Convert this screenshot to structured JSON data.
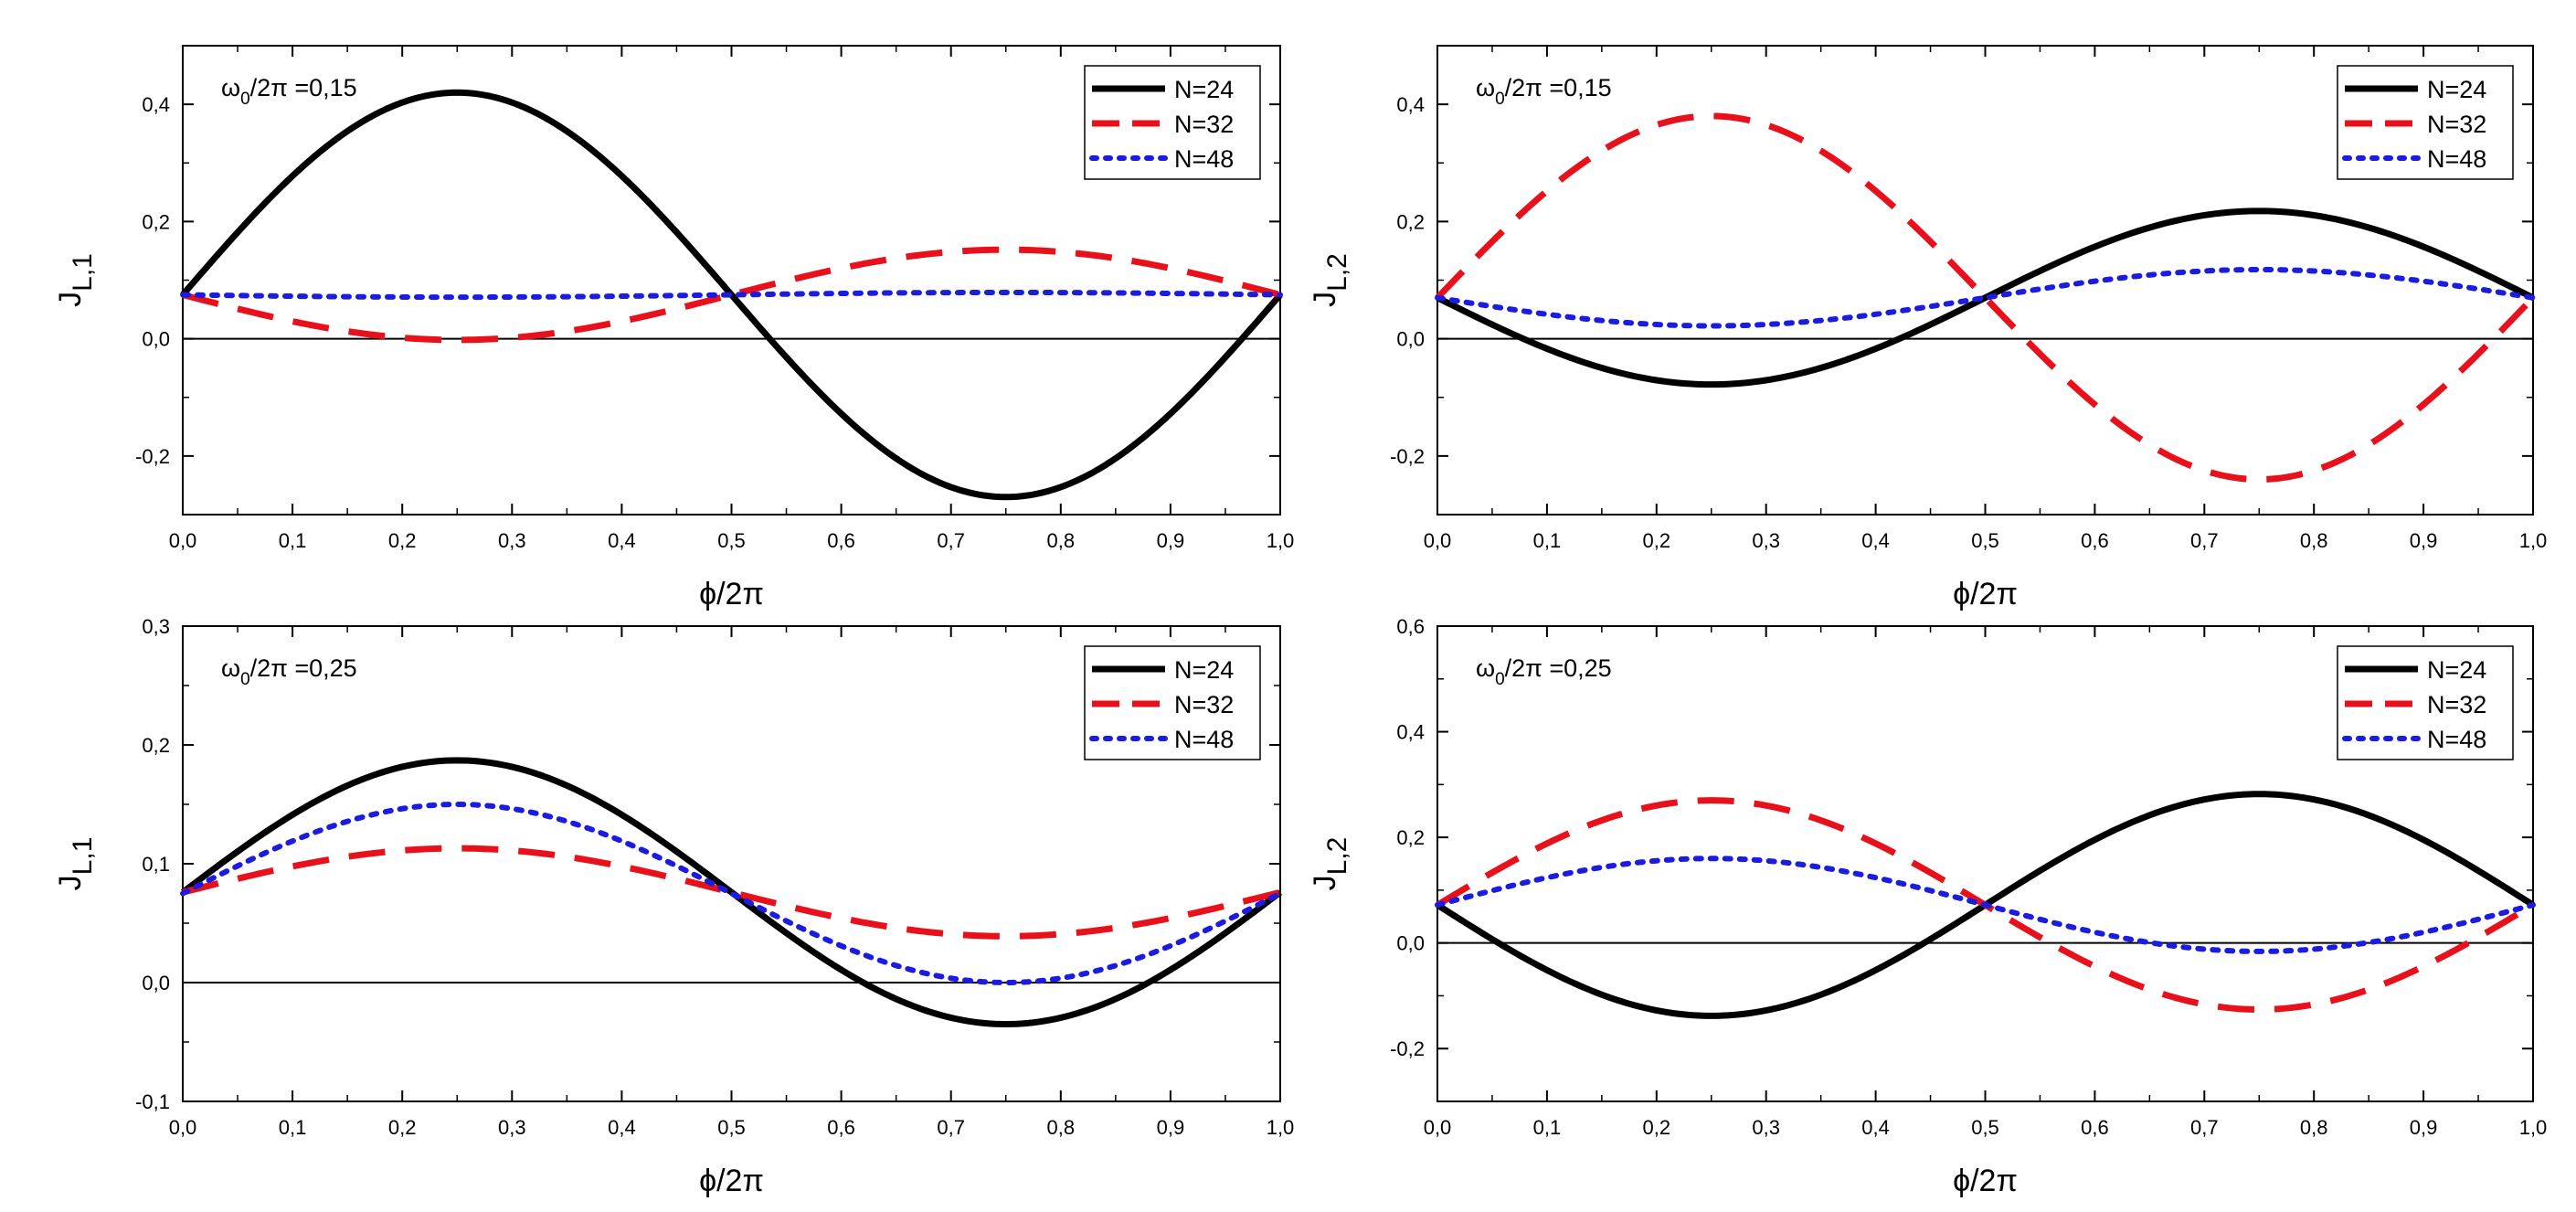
{
  "colors": {
    "N24": "#000000",
    "N32": "#e8101a",
    "N48": "#1c1ce0",
    "axis": "#000000"
  },
  "chart_data": [
    {
      "type": "line",
      "annotation": {
        "prefix": "ω",
        "sub": "0",
        "suffix": "/2π =0,15"
      },
      "xlabel": "ϕ/2π",
      "ylabel": {
        "main": "J",
        "sub": "L,1"
      },
      "xlim": [
        0,
        1
      ],
      "ylim": [
        -0.3,
        0.5
      ],
      "xticks": [
        0,
        0.1,
        0.2,
        0.3,
        0.4,
        0.5,
        0.6,
        0.7,
        0.8,
        0.9,
        1.0
      ],
      "xtick_labels": [
        "0,0",
        "0,1",
        "0,2",
        "0,3",
        "0,4",
        "0,5",
        "0,6",
        "0,7",
        "0,8",
        "0,9",
        "1,0"
      ],
      "yticks": [
        -0.2,
        0,
        0.2,
        0.4
      ],
      "ytick_labels": [
        "-0,2",
        "0,0",
        "0,2",
        "0,4"
      ],
      "zero_line": true,
      "series": [
        {
          "name": "N=24",
          "style": "solid",
          "color": "#000000",
          "offset": 0.075,
          "amplitude": 0.345,
          "phase": "sin"
        },
        {
          "name": "N=32",
          "style": "dash",
          "color": "#e8101a",
          "offset": 0.075,
          "amplitude": -0.077,
          "phase": "sin"
        },
        {
          "name": "N=48",
          "style": "dot",
          "color": "#1c1ce0",
          "offset": 0.075,
          "amplitude": -0.004,
          "phase": "sin"
        }
      ]
    },
    {
      "type": "line",
      "annotation": {
        "prefix": "ω",
        "sub": "0",
        "suffix": "/2π =0,15"
      },
      "xlabel": "ϕ/2π",
      "ylabel": {
        "main": "J",
        "sub": "L,2"
      },
      "xlim": [
        0,
        1
      ],
      "ylim": [
        -0.3,
        0.5
      ],
      "xticks": [
        0,
        0.1,
        0.2,
        0.3,
        0.4,
        0.5,
        0.6,
        0.7,
        0.8,
        0.9,
        1.0
      ],
      "xtick_labels": [
        "0,0",
        "0,1",
        "0,2",
        "0,3",
        "0,4",
        "0,5",
        "0,6",
        "0,7",
        "0,8",
        "0,9",
        "1,0"
      ],
      "yticks": [
        -0.2,
        0,
        0.2,
        0.4
      ],
      "ytick_labels": [
        "-0,2",
        "0,0",
        "0,2",
        "0,4"
      ],
      "zero_line": true,
      "series": [
        {
          "name": "N=24",
          "style": "solid",
          "color": "#000000",
          "offset": 0.07,
          "amplitude": -0.148,
          "phase": "sin"
        },
        {
          "name": "N=32",
          "style": "dash",
          "color": "#e8101a",
          "offset": 0.07,
          "amplitude": 0.31,
          "phase": "sin"
        },
        {
          "name": "N=48",
          "style": "dot",
          "color": "#1c1ce0",
          "offset": 0.07,
          "amplitude": -0.048,
          "phase": "sin"
        }
      ]
    },
    {
      "type": "line",
      "annotation": {
        "prefix": "ω",
        "sub": "0",
        "suffix": "/2π =0,25"
      },
      "xlabel": "ϕ/2π",
      "ylabel": {
        "main": "J",
        "sub": "L,1"
      },
      "xlim": [
        0,
        1
      ],
      "ylim": [
        -0.1,
        0.3
      ],
      "xticks": [
        0,
        0.1,
        0.2,
        0.3,
        0.4,
        0.5,
        0.6,
        0.7,
        0.8,
        0.9,
        1.0
      ],
      "xtick_labels": [
        "0,0",
        "0,1",
        "0,2",
        "0,3",
        "0,4",
        "0,5",
        "0,6",
        "0,7",
        "0,8",
        "0,9",
        "1,0"
      ],
      "yticks": [
        -0.1,
        0,
        0.1,
        0.2,
        0.3
      ],
      "ytick_labels": [
        "-0,1",
        "0,0",
        "0,1",
        "0,2",
        "0,3"
      ],
      "zero_line": true,
      "series": [
        {
          "name": "N=24",
          "style": "solid",
          "color": "#000000",
          "offset": 0.076,
          "amplitude": 0.111,
          "phase": "sin"
        },
        {
          "name": "N=32",
          "style": "dash",
          "color": "#e8101a",
          "offset": 0.076,
          "amplitude": 0.037,
          "phase": "sin"
        },
        {
          "name": "N=48",
          "style": "dot",
          "color": "#1c1ce0",
          "offset": 0.075,
          "amplitude": 0.075,
          "phase": "sin"
        }
      ]
    },
    {
      "type": "line",
      "annotation": {
        "prefix": "ω",
        "sub": "0",
        "suffix": "/2π =0,25"
      },
      "xlabel": "ϕ/2π",
      "ylabel": {
        "main": "J",
        "sub": "L,2"
      },
      "xlim": [
        0,
        1
      ],
      "ylim": [
        -0.3,
        0.6
      ],
      "xticks": [
        0,
        0.1,
        0.2,
        0.3,
        0.4,
        0.5,
        0.6,
        0.7,
        0.8,
        0.9,
        1.0
      ],
      "xtick_labels": [
        "0,0",
        "0,1",
        "0,2",
        "0,3",
        "0,4",
        "0,5",
        "0,6",
        "0,7",
        "0,8",
        "0,9",
        "1,0"
      ],
      "yticks": [
        -0.2,
        0,
        0.2,
        0.4,
        0.6
      ],
      "ytick_labels": [
        "-0,2",
        "0,0",
        "0,2",
        "0,4",
        "0,6"
      ],
      "zero_line": true,
      "series": [
        {
          "name": "N=24",
          "style": "solid",
          "color": "#000000",
          "offset": 0.072,
          "amplitude": -0.21,
          "phase": "sin"
        },
        {
          "name": "N=32",
          "style": "dash",
          "color": "#e8101a",
          "offset": 0.072,
          "amplitude": 0.198,
          "phase": "sin"
        },
        {
          "name": "N=48",
          "style": "dot",
          "color": "#1c1ce0",
          "offset": 0.072,
          "amplitude": 0.088,
          "phase": "sin"
        }
      ]
    }
  ]
}
